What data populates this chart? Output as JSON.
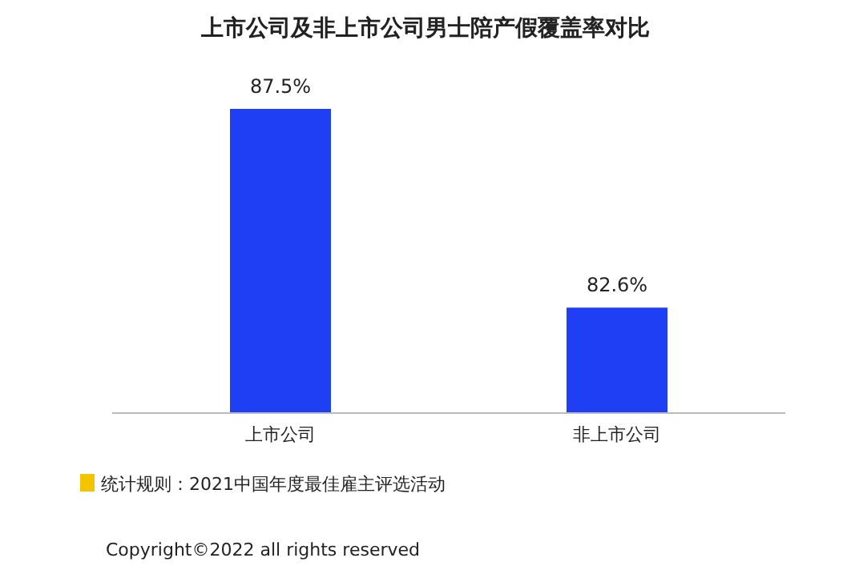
{
  "chart_data": {
    "type": "bar",
    "title": "上市公司及非上市公司男士陪产假覆盖率对比",
    "categories": [
      "上市公司",
      "非上市公司"
    ],
    "values": [
      87.5,
      82.6
    ],
    "value_labels": [
      "87.5%",
      "82.6%"
    ],
    "ylim": [
      80,
      87.5
    ],
    "color": "#1f3ff5",
    "tick_labels": "x",
    "annotations": [
      "统计规则：2021中国年度最佳雇主评选活动",
      "Copyright©2022 all rights reserved"
    ]
  }
}
